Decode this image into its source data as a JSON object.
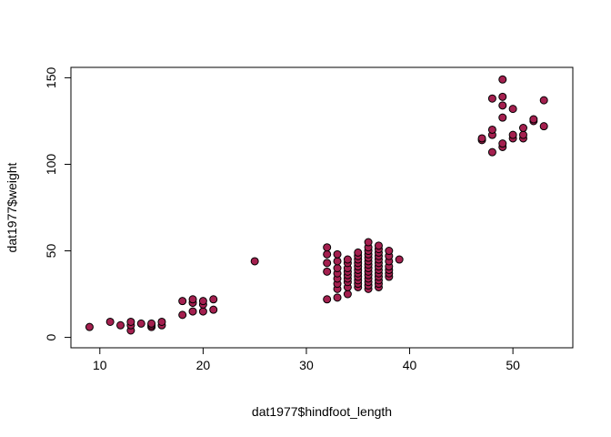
{
  "chart_data": {
    "type": "scatter",
    "title": "",
    "xlabel": "dat1977$hindfoot_length",
    "ylabel": "dat1977$weight",
    "xlim": [
      7.2,
      55.8
    ],
    "ylim": [
      -6,
      156
    ],
    "xticks": [
      10,
      20,
      30,
      40,
      50
    ],
    "yticks": [
      0,
      50,
      100,
      150
    ],
    "grid": false,
    "marker": {
      "fill": "#a4204f",
      "stroke": "#000000"
    },
    "points": [
      [
        9,
        6
      ],
      [
        11,
        9
      ],
      [
        12,
        7
      ],
      [
        13,
        4
      ],
      [
        13,
        7
      ],
      [
        13,
        9
      ],
      [
        14,
        8
      ],
      [
        15,
        6
      ],
      [
        15,
        7
      ],
      [
        15,
        8
      ],
      [
        16,
        7
      ],
      [
        16,
        9
      ],
      [
        18,
        13
      ],
      [
        18,
        21
      ],
      [
        19,
        15
      ],
      [
        19,
        20
      ],
      [
        19,
        22
      ],
      [
        20,
        15
      ],
      [
        20,
        19
      ],
      [
        20,
        21
      ],
      [
        21,
        16
      ],
      [
        21,
        22
      ],
      [
        25,
        44
      ],
      [
        32,
        22
      ],
      [
        32,
        38
      ],
      [
        32,
        43
      ],
      [
        32,
        48
      ],
      [
        32,
        52
      ],
      [
        33,
        23
      ],
      [
        33,
        28
      ],
      [
        33,
        31
      ],
      [
        33,
        34
      ],
      [
        33,
        37
      ],
      [
        33,
        40
      ],
      [
        33,
        44
      ],
      [
        33,
        48
      ],
      [
        34,
        25
      ],
      [
        34,
        29
      ],
      [
        34,
        32
      ],
      [
        34,
        34
      ],
      [
        34,
        36
      ],
      [
        34,
        38
      ],
      [
        34,
        40
      ],
      [
        34,
        43
      ],
      [
        34,
        45
      ],
      [
        35,
        29
      ],
      [
        35,
        31
      ],
      [
        35,
        33
      ],
      [
        35,
        35
      ],
      [
        35,
        37
      ],
      [
        35,
        39
      ],
      [
        35,
        41
      ],
      [
        35,
        43
      ],
      [
        35,
        45
      ],
      [
        35,
        47
      ],
      [
        35,
        49
      ],
      [
        36,
        28
      ],
      [
        36,
        30
      ],
      [
        36,
        32
      ],
      [
        36,
        34
      ],
      [
        36,
        36
      ],
      [
        36,
        38
      ],
      [
        36,
        40
      ],
      [
        36,
        42
      ],
      [
        36,
        44
      ],
      [
        36,
        46
      ],
      [
        36,
        48
      ],
      [
        36,
        50
      ],
      [
        36,
        52
      ],
      [
        36,
        55
      ],
      [
        37,
        29
      ],
      [
        37,
        31
      ],
      [
        37,
        33
      ],
      [
        37,
        35
      ],
      [
        37,
        37
      ],
      [
        37,
        39
      ],
      [
        37,
        41
      ],
      [
        37,
        43
      ],
      [
        37,
        45
      ],
      [
        37,
        47
      ],
      [
        37,
        49
      ],
      [
        37,
        51
      ],
      [
        37,
        53
      ],
      [
        38,
        35
      ],
      [
        38,
        37
      ],
      [
        38,
        39
      ],
      [
        38,
        41
      ],
      [
        38,
        44
      ],
      [
        38,
        47
      ],
      [
        38,
        50
      ],
      [
        39,
        45
      ],
      [
        47,
        114
      ],
      [
        47,
        115
      ],
      [
        48,
        107
      ],
      [
        48,
        117
      ],
      [
        48,
        120
      ],
      [
        48,
        138
      ],
      [
        49,
        110
      ],
      [
        49,
        112
      ],
      [
        49,
        127
      ],
      [
        49,
        134
      ],
      [
        49,
        139
      ],
      [
        49,
        149
      ],
      [
        50,
        115
      ],
      [
        50,
        117
      ],
      [
        50,
        132
      ],
      [
        51,
        115
      ],
      [
        51,
        117
      ],
      [
        51,
        121
      ],
      [
        52,
        125
      ],
      [
        52,
        126
      ],
      [
        53,
        122
      ],
      [
        53,
        137
      ]
    ]
  }
}
